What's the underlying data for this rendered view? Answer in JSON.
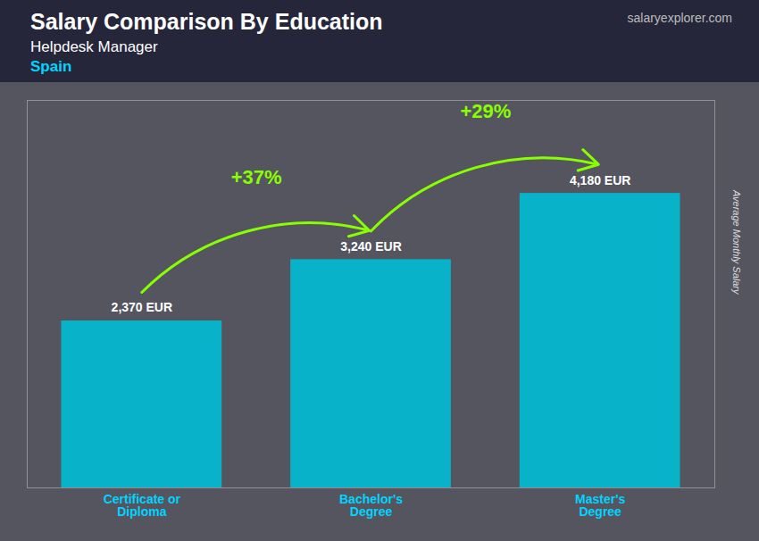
{
  "chart_data": {
    "type": "bar",
    "title": "Salary Comparison By Education",
    "subtitle": [
      "Helpdesk Manager",
      "Spain"
    ],
    "ylabel": "Average Monthly Salary",
    "categories": [
      "Certificate or\nDiploma",
      "Bachelor's\nDegree",
      "Master's\nDegree"
    ],
    "values": [
      2370,
      3240,
      4180
    ],
    "value_labels": [
      "2,370 EUR",
      "3,240 EUR",
      "4,180 EUR"
    ],
    "data_labels": true,
    "color": "#00bcd4",
    "ylim": [
      0,
      5500
    ],
    "grid": false,
    "tick_labels": "x",
    "annotations": [
      {
        "text": "+37%",
        "from": "Certificate or\nDiploma",
        "to": "Bachelor's\nDegree",
        "color": "#88ff00"
      },
      {
        "text": "+29%",
        "from": "Bachelor's\nDegree",
        "to": "Master's\nDegree",
        "color": "#88ff00"
      },
      {
        "text": "salaryexplorer.com"
      }
    ]
  }
}
